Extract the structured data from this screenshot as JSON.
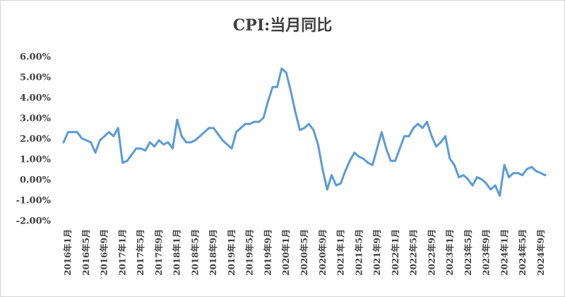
{
  "chart_data": {
    "type": "line",
    "title": "CPI:当月同比",
    "xlabel": "",
    "ylabel": "",
    "ylim": [
      -0.02,
      0.06
    ],
    "grid": false,
    "legend": "none",
    "color": "#5b9bd5",
    "y_ticks": [
      "6.00%",
      "5.00%",
      "4.00%",
      "3.00%",
      "2.00%",
      "1.00%",
      "0.00%",
      "-1.00%",
      "-2.00%"
    ],
    "x_tick_labels": [
      "2016年1月",
      "2016年5月",
      "2016年9月",
      "2017年1月",
      "2017年5月",
      "2017年9月",
      "2018年1月",
      "2018年5月",
      "2018年9月",
      "2019年1月",
      "2019年5月",
      "2019年9月",
      "2020年1月",
      "2020年5月",
      "2020年9月",
      "2021年1月",
      "2021年5月",
      "2021年9月",
      "2022年1月",
      "2022年5月",
      "2022年9月",
      "2023年1月",
      "2023年5月",
      "2023年9月",
      "2024年1月",
      "2024年5月",
      "2024年9月"
    ],
    "series": [
      {
        "values": [
          1.8,
          2.3,
          2.3,
          2.3,
          2.0,
          1.9,
          1.8,
          1.3,
          1.9,
          2.1,
          2.3,
          2.1,
          2.5,
          0.8,
          0.9,
          1.2,
          1.5,
          1.5,
          1.4,
          1.8,
          1.6,
          1.9,
          1.7,
          1.8,
          1.5,
          2.9,
          2.1,
          1.8,
          1.8,
          1.9,
          2.1,
          2.3,
          2.5,
          2.5,
          2.2,
          1.9,
          1.7,
          1.5,
          2.3,
          2.5,
          2.7,
          2.7,
          2.8,
          2.8,
          3.0,
          3.8,
          4.5,
          4.5,
          5.4,
          5.2,
          4.3,
          3.3,
          2.4,
          2.5,
          2.7,
          2.4,
          1.7,
          0.5,
          -0.5,
          0.2,
          -0.3,
          -0.2,
          0.4,
          0.9,
          1.3,
          1.1,
          1.0,
          0.8,
          0.7,
          1.5,
          2.3,
          1.5,
          0.9,
          0.9,
          1.5,
          2.1,
          2.1,
          2.5,
          2.7,
          2.5,
          2.8,
          2.1,
          1.6,
          1.8,
          2.1,
          1.0,
          0.7,
          0.1,
          0.2,
          0.0,
          -0.3,
          0.1,
          0.0,
          -0.2,
          -0.5,
          -0.3,
          -0.8,
          0.7,
          0.1,
          0.3,
          0.3,
          0.2,
          0.5,
          0.6,
          0.4,
          0.3,
          0.2
        ]
      }
    ]
  }
}
